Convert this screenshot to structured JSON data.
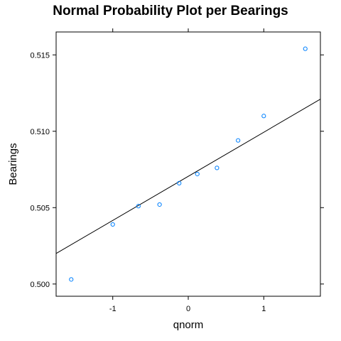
{
  "chart_data": {
    "type": "scatter",
    "title": "Normal Probability Plot per Bearings",
    "xlabel": "qnorm",
    "ylabel": "Bearings",
    "xlim": [
      -1.75,
      1.75
    ],
    "ylim": [
      0.4992,
      0.5165
    ],
    "x_ticks": [
      -1,
      0,
      1
    ],
    "x_tick_labels": [
      "-1",
      "0",
      "1"
    ],
    "y_ticks": [
      0.5,
      0.505,
      0.51,
      0.515
    ],
    "y_tick_labels": [
      "0.500",
      "0.505",
      "0.510",
      "0.515"
    ],
    "grid": false,
    "legend": "none",
    "point_color": "#0080ff",
    "line_color": "#000000",
    "series": [
      {
        "x": [
          -1.55,
          -1.0,
          -0.66,
          -0.38,
          -0.12,
          0.12,
          0.38,
          0.66,
          1.0,
          1.55
        ],
        "y": [
          0.5003,
          0.5039,
          0.5051,
          0.5052,
          0.5066,
          0.5072,
          0.5076,
          0.5094,
          0.511,
          0.5154
        ]
      }
    ],
    "reference_line": {
      "x": [
        -1.75,
        1.75
      ],
      "y": [
        0.502,
        0.5121
      ]
    }
  }
}
